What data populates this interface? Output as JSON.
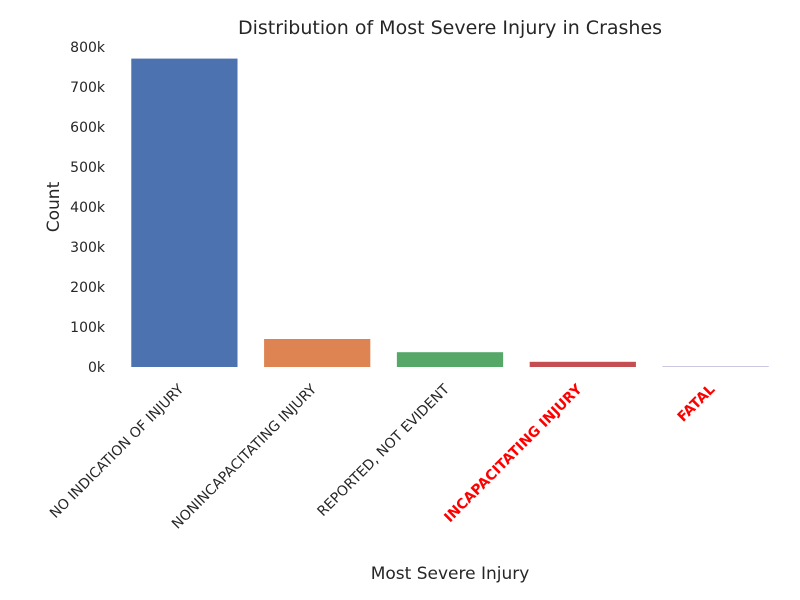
{
  "chart_data": {
    "type": "bar",
    "title": "Distribution of Most Severe Injury in Crashes",
    "xlabel": "Most Severe Injury",
    "ylabel": "Count",
    "ylim": [
      0,
      800000
    ],
    "yticks": [
      0,
      100000,
      200000,
      300000,
      400000,
      500000,
      600000,
      700000,
      800000
    ],
    "ytick_labels": [
      "0k",
      "100k",
      "200k",
      "300k",
      "400k",
      "500k",
      "600k",
      "700k",
      "800k"
    ],
    "categories": [
      "NO INDICATION OF INJURY",
      "NONINCAPACITATING INJURY",
      "REPORTED, NOT EVIDENT",
      "INCAPACITATING INJURY",
      "FATAL"
    ],
    "values": [
      771000,
      70000,
      37000,
      13000,
      1000
    ],
    "colors": [
      "#4C72B0",
      "#DD8452",
      "#55A868",
      "#C44E52",
      "#8172B3"
    ],
    "highlighted_tick_color": "#ff0000",
    "highlighted_categories": [
      "INCAPACITATING INJURY",
      "FATAL"
    ],
    "grid": false,
    "legend": "none"
  }
}
